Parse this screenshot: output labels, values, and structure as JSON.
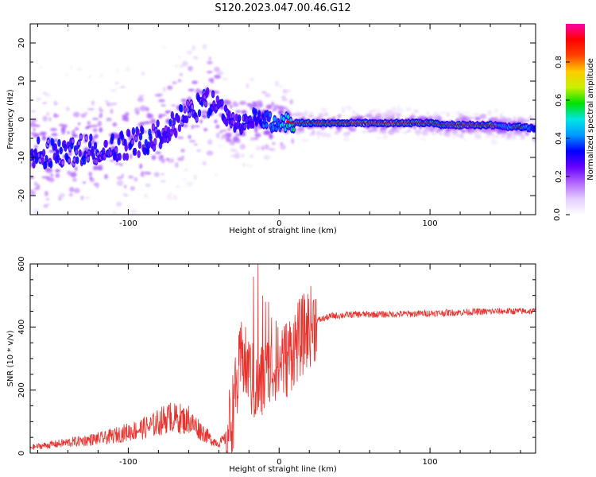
{
  "title": "S120.2023.047.00.46.G12",
  "colors": {
    "snr_line": "#e8322d",
    "ridge_core": "#e60000",
    "colormap": [
      "#ffffff",
      "#e4ccff",
      "#b266ff",
      "#6600ff",
      "#0000ff",
      "#0099ff",
      "#00e5e5",
      "#00e000",
      "#c8f000",
      "#ffcc00",
      "#ff4400",
      "#ff0000",
      "#ff00aa"
    ]
  },
  "chart_data": [
    {
      "type": "heatmap",
      "title": "",
      "xlabel": "Height of straight line (km)",
      "ylabel": "Frequency (Hz)",
      "xlim": [
        -165,
        170
      ],
      "ylim": [
        -25,
        25
      ],
      "xticks": [
        -100,
        0,
        100
      ],
      "xtick_labels": [
        "-100",
        "0",
        "100"
      ],
      "yticks": [
        -20,
        -10,
        0,
        10,
        20
      ],
      "ytick_labels": [
        "-20",
        "-10",
        "0",
        "10",
        "20"
      ],
      "colorbar": {
        "label": "Normalized spectral amplitude",
        "range": [
          0,
          1
        ],
        "ticks": [
          0,
          0.2,
          0.4,
          0.6,
          0.8
        ],
        "tick_labels": [
          "0.0",
          "0.2",
          "0.4",
          "0.6",
          "0.8"
        ]
      },
      "ridge": {
        "x": [
          -165,
          -150,
          -130,
          -110,
          -95,
          -80,
          -70,
          -60,
          -52,
          -45,
          -40,
          -35,
          -30,
          -25,
          -20,
          -15,
          -10,
          -5,
          0,
          5,
          10,
          20,
          40,
          60,
          80,
          100,
          110,
          120,
          140,
          150,
          160,
          170
        ],
        "frequency": [
          -9,
          -9,
          -8,
          -7,
          -6,
          -4,
          -1,
          2,
          3,
          5,
          4,
          1,
          -1,
          -2,
          0,
          0.5,
          0,
          -1,
          -1,
          -0.5,
          -1,
          -1,
          -1,
          -1,
          -1,
          -1,
          -1.5,
          -1.5,
          -1.5,
          -2,
          -2,
          -2.5
        ],
        "amplitude": [
          0.25,
          0.3,
          0.3,
          0.35,
          0.35,
          0.35,
          0.35,
          0.3,
          0.3,
          0.35,
          0.4,
          0.4,
          0.35,
          0.35,
          0.4,
          0.5,
          0.6,
          0.65,
          0.7,
          0.8,
          0.85,
          0.9,
          0.95,
          0.98,
          0.97,
          0.9,
          0.85,
          0.92,
          0.95,
          0.7,
          0.9,
          0.5
        ]
      }
    },
    {
      "type": "line",
      "title": "",
      "xlabel": "Height of straight line (km)",
      "ylabel": "SNR (10 * v/v)",
      "xlim": [
        -165,
        170
      ],
      "ylim": [
        0,
        600
      ],
      "xticks": [
        -100,
        0,
        100
      ],
      "xtick_labels": [
        "-100",
        "0",
        "100"
      ],
      "yticks": [
        0,
        200,
        400,
        600
      ],
      "ytick_labels": [
        "0",
        "200",
        "400",
        "600"
      ],
      "series": [
        {
          "x": [
            -165,
            -155,
            -145,
            -135,
            -125,
            -115,
            -105,
            -95,
            -85,
            -75,
            -65,
            -55,
            -45,
            -40,
            -35,
            -30,
            -25,
            -20,
            -15,
            -10,
            -5,
            0,
            5,
            10,
            15,
            20,
            25,
            35,
            50,
            70,
            90,
            110,
            130,
            150,
            170
          ],
          "values": [
            15,
            20,
            25,
            30,
            35,
            40,
            50,
            60,
            70,
            90,
            90,
            70,
            35,
            25,
            40,
            150,
            300,
            250,
            200,
            230,
            270,
            280,
            300,
            340,
            370,
            400,
            420,
            435,
            440,
            440,
            442,
            445,
            448,
            450,
            450
          ]
        }
      ],
      "peaks": {
        "x": [
          -72,
          -68,
          -60,
          -30,
          -26,
          -24,
          -20,
          -17,
          -14,
          -11,
          -9,
          -7,
          -5,
          -2,
          2
        ],
        "values": [
          160,
          150,
          150,
          220,
          330,
          360,
          330,
          560,
          605,
          500,
          480,
          480,
          430,
          420,
          390
        ]
      }
    }
  ]
}
